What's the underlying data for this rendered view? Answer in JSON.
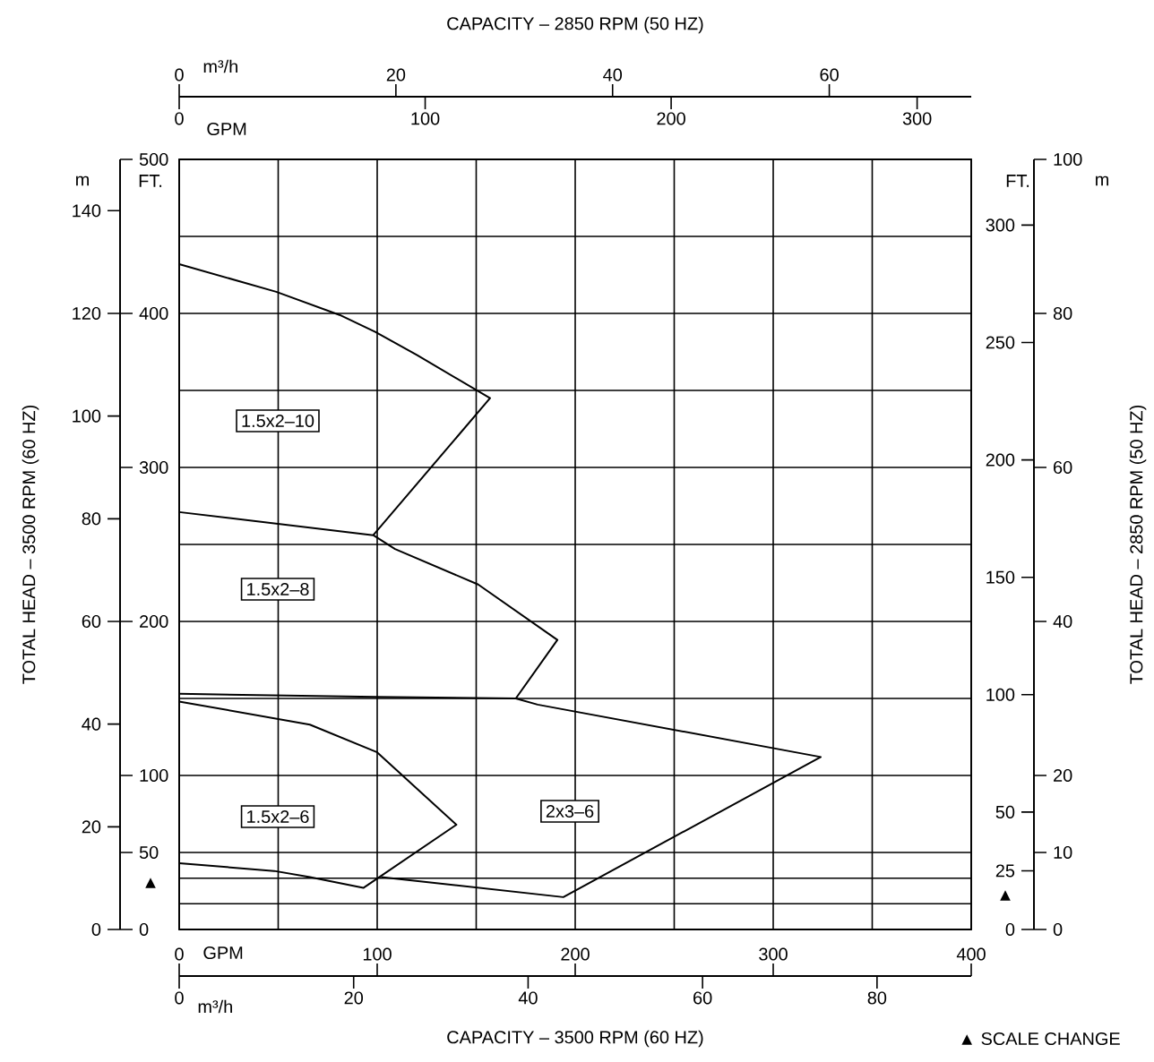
{
  "chart_data": [
    {
      "type": "line",
      "x2label": "CAPACITY – 3500 RPM (60 HZ)",
      "y2label": "TOTAL HEAD – 3500 RPM (60 HZ)",
      "xlim": [
        0,
        400
      ],
      "xticks": [
        0,
        {
          "value": 50,
          "label": null
        },
        100,
        {
          "value": 150,
          "label": null
        },
        200,
        {
          "value": 250,
          "label": null
        },
        300,
        {
          "value": 350,
          "label": null
        },
        400
      ],
      "x2lim": [
        0,
        90.8
      ],
      "x2ticks": [
        0,
        20,
        40,
        60,
        80
      ],
      "ylim": [
        0,
        500
      ],
      "yticks": [
        0,
        {
          "value": 16.7,
          "label": null
        },
        {
          "value": 33.3,
          "label": null
        },
        50,
        100,
        {
          "value": 150,
          "label": null
        },
        200,
        {
          "value": 250,
          "label": null
        },
        300,
        {
          "value": 350,
          "label": null
        },
        400,
        {
          "value": 450,
          "label": null
        },
        500
      ],
      "y2lim": [
        0,
        150
      ],
      "y2ticks": [
        0,
        20,
        40,
        60,
        80,
        100,
        120,
        140
      ],
      "grid": true,
      "series": [
        {
          "color": "#000000",
          "x": [
            0,
            49,
            81,
            99,
            120,
            157,
            98
          ],
          "values": [
            432,
            414,
            399,
            388,
            373,
            345,
            256
          ]
        },
        {
          "color": "#000000",
          "x": [
            0,
            98,
            109,
            151,
            191,
            170
          ],
          "values": [
            271,
            256,
            247,
            224,
            188,
            150
          ]
        },
        {
          "color": "#000000",
          "x": [
            0,
            99,
            170,
            181,
            324,
            194,
            102
          ],
          "values": [
            153,
            151,
            150,
            146,
            112,
            21,
            34
          ]
        },
        {
          "color": "#000000",
          "x": [
            0,
            66,
            100,
            140,
            93,
            66,
            48,
            0
          ],
          "values": [
            148,
            133,
            115,
            68,
            27,
            34,
            38,
            43
          ]
        }
      ],
      "annotations": [
        "▲ SCALE CHANGE",
        "▲",
        "GPM",
        "m³/h",
        "m",
        "FT.",
        "1.5x2–10",
        "1.5x2–8",
        "1.5x2–6",
        "2x3–6"
      ]
    },
    {
      "type": "line",
      "x2label": "CAPACITY – 2850 RPM (50 HZ)",
      "y2label": "TOTAL HEAD – 2850 RPM (50 HZ)",
      "xlim": [
        0,
        322
      ],
      "xticks": [
        0,
        100,
        200,
        300
      ],
      "x2lim": [
        0,
        73.1
      ],
      "x2ticks": [
        0,
        20,
        40,
        60
      ],
      "ylim": [
        0,
        328
      ],
      "yticks": [
        0,
        25,
        50,
        100,
        150,
        200,
        250,
        300
      ],
      "y2lim": [
        0,
        100
      ],
      "y2ticks": [
        0,
        10,
        20,
        40,
        60,
        80,
        100
      ],
      "annotations": [
        "▲",
        "GPM",
        "m³/h",
        "FT.",
        "m"
      ]
    }
  ]
}
